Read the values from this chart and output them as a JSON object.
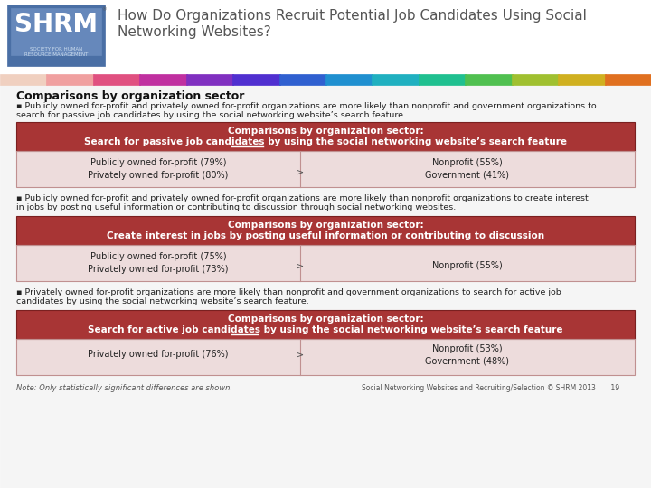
{
  "title_line1": "How Do Organizations Recruit Potential Job Candidates Using Social",
  "title_line2": "Networking Websites?",
  "section_header": "Comparisons by organization sector",
  "bg_color": "#f5f5f5",
  "header_color": "#a83535",
  "cell_bg": "#eddcdc",
  "cell_border": "#c09090",
  "table1_header1": "Comparisons by organization sector:",
  "table1_header2_pre": "Search for ",
  "table1_header2_ul": "passive",
  "table1_header2_post": " job candidates by using the social networking website’s search feature",
  "table1_left": [
    "Publicly owned for-profit (79%)",
    "Privately owned for-profit (80%)"
  ],
  "table1_right": [
    "Nonprofit (55%)",
    "Government (41%)"
  ],
  "bullet1_line1": "▪ Publicly owned for-profit and privately owned for-profit organizations are more likely than nonprofit and government organizations to",
  "bullet1_line2": "search for passive job candidates by using the social networking website’s search feature.",
  "table2_header1": "Comparisons by organization sector:",
  "table2_header2": "Create interest in jobs by posting useful information or contributing to discussion",
  "table2_left": [
    "Publicly owned for-profit (75%)",
    "Privately owned for-profit (73%)"
  ],
  "table2_right": [
    "Nonprofit (55%)"
  ],
  "bullet2_line1": "▪ Publicly owned for-profit and privately owned for-profit organizations are more likely than nonprofit organizations to create interest",
  "bullet2_line2": "in jobs by posting useful information or contributing to discussion through social networking websites.",
  "table3_header1": "Comparisons by organization sector:",
  "table3_header2_pre": "Search for ",
  "table3_header2_ul": "active",
  "table3_header2_post": " job candidates by using the social networking website’s search feature",
  "table3_left": [
    "Privately owned for-profit (76%)"
  ],
  "table3_right": [
    "Nonprofit (53%)",
    "Government (48%)"
  ],
  "bullet3_line1": "▪ Privately owned for-profit organizations are more likely than nonprofit and government organizations to search for active job",
  "bullet3_line2": "candidates by using the social networking website’s search feature.",
  "note": "Note: Only statistically significant differences are shown.",
  "footer": "Social Networking Websites and Recruiting/Selection © SHRM 2013       19",
  "greater_sign": ">",
  "text_dark": "#222222",
  "text_white": "#ffffff",
  "logo_outer_color": "#5577aa",
  "logo_inner_color": "#3355880",
  "shrm_text": "SHRM"
}
